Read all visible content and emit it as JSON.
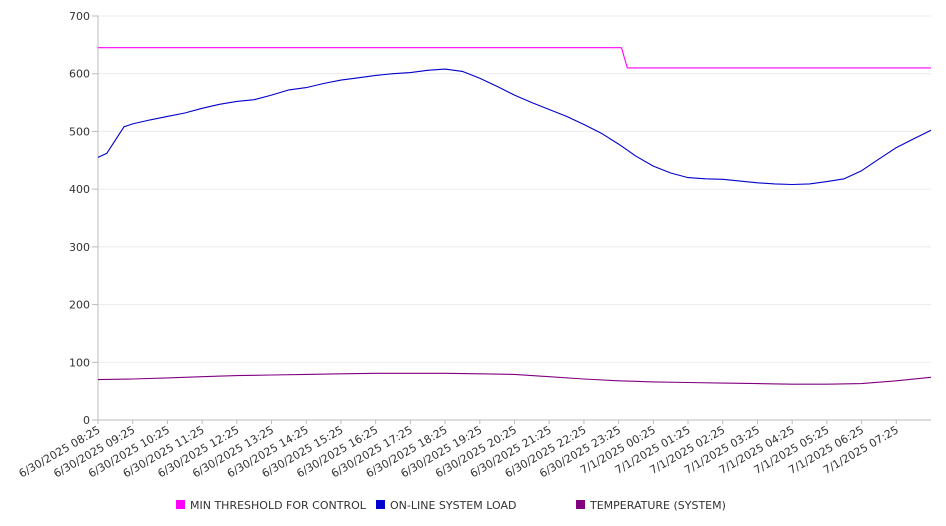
{
  "chart_data": {
    "type": "line",
    "title": "",
    "xlabel": "",
    "ylabel": "",
    "ylim": [
      0,
      700
    ],
    "y_ticks": [
      0,
      100,
      200,
      300,
      400,
      500,
      600,
      700
    ],
    "x_tick_labels": [
      "6/30/2025 08:25",
      "6/30/2025 09:25",
      "6/30/2025 10:25",
      "6/30/2025 11:25",
      "6/30/2025 12:25",
      "6/30/2025 13:25",
      "6/30/2025 14:25",
      "6/30/2025 15:25",
      "6/30/2025 16:25",
      "6/30/2025 17:25",
      "6/30/2025 18:25",
      "6/30/2025 19:25",
      "6/30/2025 20:25",
      "6/30/2025 21:25",
      "6/30/2025 22:25",
      "6/30/2025 23:25",
      "7/1/2025 00:25",
      "7/1/2025 01:25",
      "7/1/2025 02:25",
      "7/1/2025 03:25",
      "7/1/2025 04:25",
      "7/1/2025 05:25",
      "7/1/2025 06:25",
      "7/1/2025 07:25"
    ],
    "x_start": "6/30/2025 08:25",
    "x_end": "7/1/2025 08:25",
    "grid": "horizontal",
    "legend_position": "bottom",
    "series": [
      {
        "name": "MIN THRESHOLD FOR CONTROL",
        "color": "#ff00ff",
        "points": [
          [
            "6/30/2025 08:25",
            645
          ],
          [
            "6/30/2025 23:25",
            645
          ],
          [
            "6/30/2025 23:30",
            645
          ],
          [
            "6/30/2025 23:40",
            610
          ],
          [
            "7/1/2025 08:25",
            610
          ]
        ]
      },
      {
        "name": "ON-LINE SYSTEM LOAD",
        "color": "#0000cc",
        "points": [
          [
            "6/30/2025 08:25",
            455
          ],
          [
            "6/30/2025 08:40",
            462
          ],
          [
            "6/30/2025 08:55",
            485
          ],
          [
            "6/30/2025 09:10",
            508
          ],
          [
            "6/30/2025 09:25",
            513
          ],
          [
            "6/30/2025 09:55",
            520
          ],
          [
            "6/30/2025 10:25",
            526
          ],
          [
            "6/30/2025 10:55",
            532
          ],
          [
            "6/30/2025 11:25",
            540
          ],
          [
            "6/30/2025 11:55",
            547
          ],
          [
            "6/30/2025 12:25",
            552
          ],
          [
            "6/30/2025 12:55",
            555
          ],
          [
            "6/30/2025 13:25",
            563
          ],
          [
            "6/30/2025 13:55",
            572
          ],
          [
            "6/30/2025 14:25",
            576
          ],
          [
            "6/30/2025 14:55",
            583
          ],
          [
            "6/30/2025 15:25",
            589
          ],
          [
            "6/30/2025 15:55",
            593
          ],
          [
            "6/30/2025 16:25",
            597
          ],
          [
            "6/30/2025 16:55",
            600
          ],
          [
            "6/30/2025 17:25",
            602
          ],
          [
            "6/30/2025 17:55",
            606
          ],
          [
            "6/30/2025 18:25",
            608
          ],
          [
            "6/30/2025 18:55",
            604
          ],
          [
            "6/30/2025 19:25",
            592
          ],
          [
            "6/30/2025 19:55",
            578
          ],
          [
            "6/30/2025 20:25",
            563
          ],
          [
            "6/30/2025 20:55",
            550
          ],
          [
            "6/30/2025 21:25",
            538
          ],
          [
            "6/30/2025 21:55",
            526
          ],
          [
            "6/30/2025 22:25",
            512
          ],
          [
            "6/30/2025 22:55",
            497
          ],
          [
            "6/30/2025 23:25",
            478
          ],
          [
            "6/30/2025 23:55",
            457
          ],
          [
            "7/1/2025 00:25",
            440
          ],
          [
            "7/1/2025 00:55",
            428
          ],
          [
            "7/1/2025 01:25",
            420
          ],
          [
            "7/1/2025 01:55",
            418
          ],
          [
            "7/1/2025 02:25",
            417
          ],
          [
            "7/1/2025 02:55",
            414
          ],
          [
            "7/1/2025 03:25",
            411
          ],
          [
            "7/1/2025 03:55",
            409
          ],
          [
            "7/1/2025 04:25",
            408
          ],
          [
            "7/1/2025 04:55",
            409
          ],
          [
            "7/1/2025 05:25",
            413
          ],
          [
            "7/1/2025 05:55",
            418
          ],
          [
            "7/1/2025 06:25",
            432
          ],
          [
            "7/1/2025 06:55",
            452
          ],
          [
            "7/1/2025 07:25",
            472
          ],
          [
            "7/1/2025 07:55",
            487
          ],
          [
            "7/1/2025 08:25",
            502
          ]
        ]
      },
      {
        "name": "TEMPERATURE (SYSTEM)",
        "color": "#800080",
        "points": [
          [
            "6/30/2025 08:25",
            70
          ],
          [
            "6/30/2025 09:25",
            71
          ],
          [
            "6/30/2025 10:25",
            73
          ],
          [
            "6/30/2025 11:25",
            75
          ],
          [
            "6/30/2025 12:25",
            77
          ],
          [
            "6/30/2025 13:25",
            78
          ],
          [
            "6/30/2025 14:25",
            79
          ],
          [
            "6/30/2025 15:25",
            80
          ],
          [
            "6/30/2025 16:25",
            81
          ],
          [
            "6/30/2025 17:25",
            81
          ],
          [
            "6/30/2025 18:25",
            81
          ],
          [
            "6/30/2025 19:25",
            80
          ],
          [
            "6/30/2025 20:25",
            79
          ],
          [
            "6/30/2025 21:25",
            75
          ],
          [
            "6/30/2025 22:25",
            71
          ],
          [
            "6/30/2025 23:25",
            68
          ],
          [
            "7/1/2025 00:25",
            66
          ],
          [
            "7/1/2025 01:25",
            65
          ],
          [
            "7/1/2025 02:25",
            64
          ],
          [
            "7/1/2025 03:25",
            63
          ],
          [
            "7/1/2025 04:25",
            62
          ],
          [
            "7/1/2025 05:25",
            62
          ],
          [
            "7/1/2025 06:25",
            63
          ],
          [
            "7/1/2025 07:25",
            68
          ],
          [
            "7/1/2025 08:25",
            74
          ]
        ]
      }
    ]
  }
}
